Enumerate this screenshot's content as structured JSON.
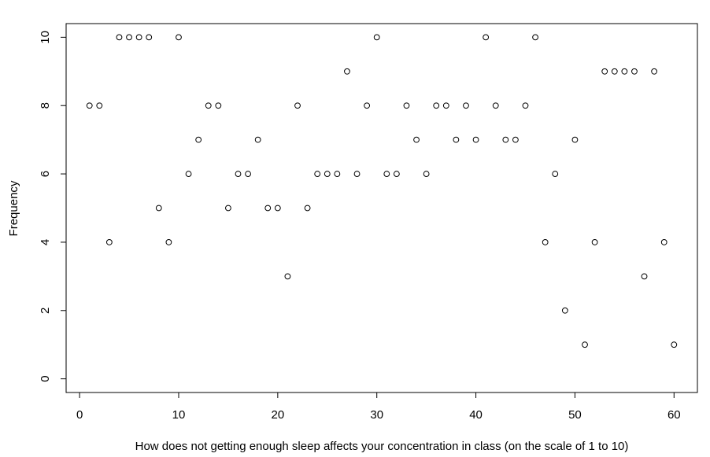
{
  "chart_data": {
    "type": "scatter",
    "x_label": "How does not getting enough sleep affects your concentration in class (on the scale of 1 to 10)",
    "y_label": "Frequency",
    "x": [
      1,
      2,
      3,
      4,
      5,
      6,
      7,
      8,
      9,
      10,
      11,
      12,
      13,
      14,
      15,
      16,
      17,
      18,
      19,
      20,
      21,
      22,
      23,
      24,
      25,
      26,
      27,
      28,
      29,
      30,
      31,
      32,
      33,
      34,
      35,
      36,
      37,
      38,
      39,
      40,
      41,
      42,
      43,
      44,
      45,
      46,
      47,
      48,
      49,
      50,
      51,
      52,
      53,
      54,
      55,
      56,
      57,
      58,
      59,
      60
    ],
    "values": [
      8,
      8,
      4,
      10,
      10,
      10,
      10,
      5,
      4,
      10,
      6,
      7,
      8,
      8,
      5,
      6,
      6,
      7,
      5,
      5,
      3,
      8,
      5,
      6,
      6,
      6,
      9,
      6,
      8,
      10,
      6,
      6,
      8,
      7,
      6,
      8,
      8,
      7,
      8,
      7,
      10,
      8,
      7,
      7,
      8,
      10,
      4,
      6,
      2,
      7,
      1,
      4,
      9,
      9,
      9,
      9,
      3,
      9,
      4,
      1
    ],
    "color": "#000000",
    "xlim": [
      -1.36,
      62.36
    ],
    "ylim": [
      -0.4,
      10.4
    ],
    "xticks": [
      0,
      10,
      20,
      30,
      40,
      50,
      60
    ],
    "yticks": [
      0,
      2,
      4,
      6,
      8,
      10
    ]
  }
}
